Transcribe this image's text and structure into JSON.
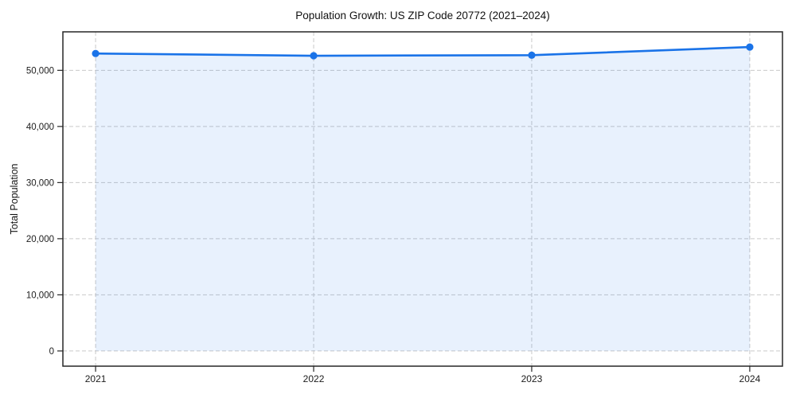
{
  "chart_data": {
    "type": "area",
    "title": "Population Growth: US ZIP Code 20772 (2021–2024)",
    "xlabel": "",
    "ylabel": "Total Population",
    "x": [
      2021,
      2022,
      2023,
      2024
    ],
    "x_tick_labels": [
      "2021",
      "2022",
      "2023",
      "2024"
    ],
    "series": [
      {
        "name": "Total Population",
        "values": [
          53000,
          52600,
          52700,
          54150
        ],
        "marker": "circle"
      }
    ],
    "y_ticks": [
      0,
      10000,
      20000,
      30000,
      40000,
      50000
    ],
    "y_tick_labels": [
      "0",
      "10,000",
      "20,000",
      "30,000",
      "40,000",
      "50,000"
    ],
    "ylim": [
      -2708,
      56858
    ],
    "xlim": [
      2020.85,
      2024.15
    ],
    "fill_baseline": 0,
    "grid": "dashed",
    "legend": "none"
  },
  "colors": {
    "line": "#1a73e8",
    "marker": "#1a73e8",
    "area_fill": "rgba(26,115,232,0.10)",
    "grid": "#c9c9c9",
    "spine": "#262626",
    "tick_text": "#1c1c1c",
    "background": "#ffffff"
  }
}
